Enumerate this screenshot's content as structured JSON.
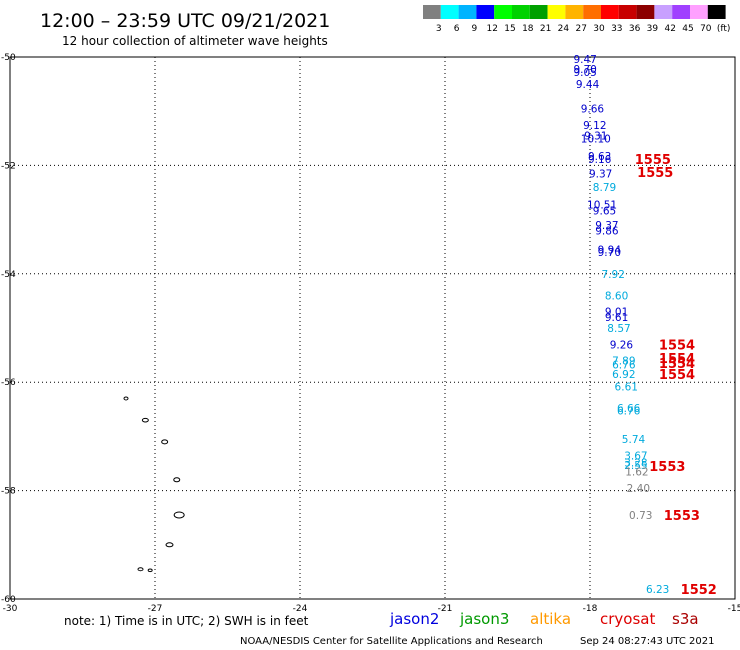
{
  "title": "12:00 – 23:59 UTC 09/21/2021",
  "subtitle": "12 hour collection of altimeter wave heights",
  "colorbar": {
    "swatches": [
      "#808080",
      "#00ffff",
      "#00b4ff",
      "#0000ff",
      "#00ff00",
      "#00d200",
      "#00a000",
      "#ffff00",
      "#ffb400",
      "#ff6e00",
      "#ff0000",
      "#c80000",
      "#8c0000",
      "#c8a0ff",
      "#a040ff",
      "#ffa0ff",
      "#000000"
    ],
    "labels": [
      "3",
      "6",
      "9",
      "12",
      "15",
      "18",
      "21",
      "24",
      "27",
      "30",
      "33",
      "36",
      "39",
      "42",
      "45",
      "70",
      "(ft)"
    ]
  },
  "axes": {
    "lon_labels": [
      "-30",
      "-27",
      "-24",
      "-21",
      "-18",
      "-15"
    ],
    "lat_labels": [
      "-50",
      "-52",
      "-54",
      "-56",
      "-58",
      "-60"
    ],
    "lon_range": [
      -30,
      -15
    ],
    "lat_range": [
      -60,
      -50
    ]
  },
  "wave_labels": [
    {
      "t": "9.47",
      "lon": -18.1,
      "lat": -50.04,
      "c": "#0000cc"
    },
    {
      "t": "9.70",
      "lon": -18.1,
      "lat": -50.22,
      "c": "#0000cc"
    },
    {
      "t": "9.05",
      "lon": -18.1,
      "lat": -50.28,
      "c": "#0000cc"
    },
    {
      "t": "9.44",
      "lon": -18.05,
      "lat": -50.5,
      "c": "#0000cc"
    },
    {
      "t": "9.66",
      "lon": -17.95,
      "lat": -50.95,
      "c": "#0000cc"
    },
    {
      "t": "9.12",
      "lon": -17.9,
      "lat": -51.25,
      "c": "#0000cc"
    },
    {
      "t": "9.31",
      "lon": -17.88,
      "lat": -51.45,
      "c": "#0000cc"
    },
    {
      "t": "10.10",
      "lon": -17.88,
      "lat": -51.5,
      "c": "#0000cc"
    },
    {
      "t": "9.63",
      "lon": -17.8,
      "lat": -51.83,
      "c": "#0000cc"
    },
    {
      "t": "9.16",
      "lon": -17.8,
      "lat": -51.88,
      "c": "#0000cc"
    },
    {
      "t": "9.37",
      "lon": -17.78,
      "lat": -52.15,
      "c": "#0000cc"
    },
    {
      "t": "8.79",
      "lon": -17.7,
      "lat": -52.4,
      "c": "#00aadd"
    },
    {
      "t": "10.51",
      "lon": -17.75,
      "lat": -52.72,
      "c": "#0000cc"
    },
    {
      "t": "9.65",
      "lon": -17.7,
      "lat": -52.83,
      "c": "#0000cc"
    },
    {
      "t": "9.37",
      "lon": -17.65,
      "lat": -53.1,
      "c": "#0000cc"
    },
    {
      "t": "9.86",
      "lon": -17.65,
      "lat": -53.2,
      "c": "#0000cc"
    },
    {
      "t": "9.94",
      "lon": -17.6,
      "lat": -53.55,
      "c": "#0000cc"
    },
    {
      "t": "9.70",
      "lon": -17.6,
      "lat": -53.6,
      "c": "#0000cc"
    },
    {
      "t": "7.92",
      "lon": -17.52,
      "lat": -54.0,
      "c": "#00aadd"
    },
    {
      "t": "8.60",
      "lon": -17.45,
      "lat": -54.4,
      "c": "#00aadd"
    },
    {
      "t": "9.01",
      "lon": -17.45,
      "lat": -54.7,
      "c": "#0000cc"
    },
    {
      "t": "9.61",
      "lon": -17.45,
      "lat": -54.8,
      "c": "#0000cc"
    },
    {
      "t": "8.57",
      "lon": -17.4,
      "lat": -55.0,
      "c": "#00aadd"
    },
    {
      "t": "9.26",
      "lon": -17.35,
      "lat": -55.3,
      "c": "#0000cc"
    },
    {
      "t": "7.89",
      "lon": -17.3,
      "lat": -55.6,
      "c": "#00aadd"
    },
    {
      "t": "6.76",
      "lon": -17.3,
      "lat": -55.67,
      "c": "#00aadd"
    },
    {
      "t": "6.92",
      "lon": -17.3,
      "lat": -55.85,
      "c": "#00aadd"
    },
    {
      "t": "6.61",
      "lon": -17.25,
      "lat": -56.08,
      "c": "#00aadd"
    },
    {
      "t": "6.66",
      "lon": -17.2,
      "lat": -56.48,
      "c": "#00aadd"
    },
    {
      "t": "6.76",
      "lon": -17.2,
      "lat": -56.52,
      "c": "#00aadd"
    },
    {
      "t": "5.74",
      "lon": -17.1,
      "lat": -57.05,
      "c": "#00aadd"
    },
    {
      "t": "3.67",
      "lon": -17.05,
      "lat": -57.35,
      "c": "#00aadd"
    },
    {
      "t": "3.28",
      "lon": -17.05,
      "lat": -57.48,
      "c": "#00aadd"
    },
    {
      "t": "2.55",
      "lon": -17.05,
      "lat": -57.53,
      "c": "#00aadd"
    },
    {
      "t": "1.62",
      "lon": -17.03,
      "lat": -57.65,
      "c": "#808080"
    },
    {
      "t": "2.40",
      "lon": -17.0,
      "lat": -57.95,
      "c": "#808080"
    },
    {
      "t": "0.73",
      "lon": -16.95,
      "lat": -58.45,
      "c": "#808080"
    },
    {
      "t": "6.23",
      "lon": -16.6,
      "lat": -59.82,
      "c": "#00aadd"
    }
  ],
  "pass_labels": [
    {
      "t": "1555",
      "lon": -16.7,
      "lat": -51.88
    },
    {
      "t": "1555",
      "lon": -16.65,
      "lat": -52.12
    },
    {
      "t": "1554",
      "lon": -16.2,
      "lat": -55.3
    },
    {
      "t": "1554",
      "lon": -16.2,
      "lat": -55.55
    },
    {
      "t": "1554",
      "lon": -16.2,
      "lat": -55.65
    },
    {
      "t": "1554",
      "lon": -16.2,
      "lat": -55.85
    },
    {
      "t": "1553",
      "lon": -16.4,
      "lat": -57.55
    },
    {
      "t": "1553",
      "lon": -16.1,
      "lat": -58.45
    },
    {
      "t": "1552",
      "lon": -15.75,
      "lat": -59.82
    }
  ],
  "islands": [
    {
      "lon": -27.6,
      "lat": -56.3,
      "rx": 2,
      "ry": 1.5
    },
    {
      "lon": -27.2,
      "lat": -56.7,
      "rx": 3,
      "ry": 1.8
    },
    {
      "lon": -26.8,
      "lat": -57.1,
      "rx": 3,
      "ry": 2
    },
    {
      "lon": -26.55,
      "lat": -57.8,
      "rx": 3,
      "ry": 2
    },
    {
      "lon": -26.5,
      "lat": -58.45,
      "rx": 5,
      "ry": 3
    },
    {
      "lon": -26.7,
      "lat": -59.0,
      "rx": 3.5,
      "ry": 2
    },
    {
      "lon": -27.3,
      "lat": -59.45,
      "rx": 2.5,
      "ry": 1.5
    },
    {
      "lon": -27.1,
      "lat": -59.47,
      "rx": 2,
      "ry": 1.3
    }
  ],
  "note": "note:  1) Time is in UTC;  2) SWH is in feet",
  "satellites": [
    {
      "name": "jason2",
      "color": "#0000dd"
    },
    {
      "name": "jason3",
      "color": "#009900"
    },
    {
      "name": "altika",
      "color": "#ff9900"
    },
    {
      "name": "cryosat",
      "color": "#dd0000"
    },
    {
      "name": "s3a",
      "color": "#aa0000"
    }
  ],
  "footer_left": "NOAA/NESDIS Center for Satellite Applications and Research",
  "footer_right": "Sep 24 08:27:43 UTC 2021"
}
